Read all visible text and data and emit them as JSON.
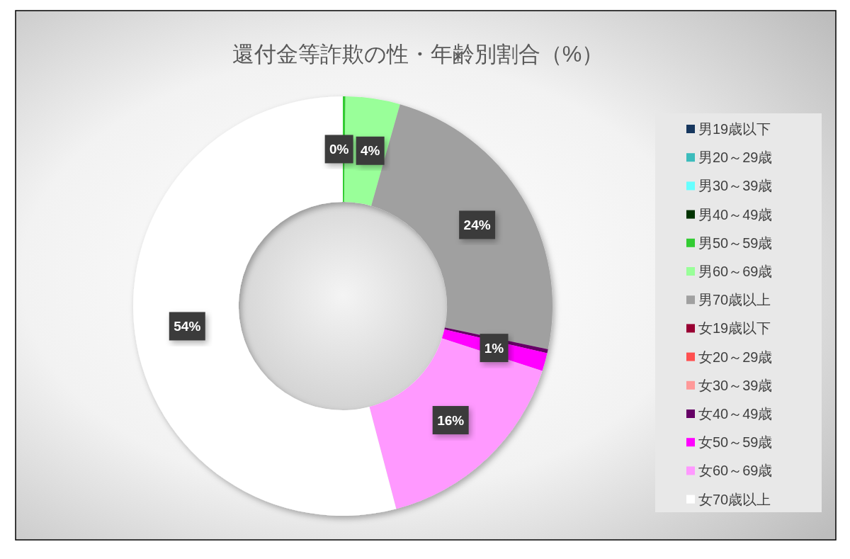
{
  "chart_data": {
    "type": "donut",
    "title": "還付金等詐欺の性・年齢別割合（%）",
    "categories": [
      "男19歳以下",
      "男20～29歳",
      "男30～39歳",
      "男40～49歳",
      "男50～59歳",
      "男60～69歳",
      "男70歳以上",
      "女19歳以下",
      "女20～29歳",
      "女30～39歳",
      "女40～49歳",
      "女50～59歳",
      "女60～69歳",
      "女70歳以上"
    ],
    "values": [
      0,
      0,
      0,
      0,
      0.2,
      4.2,
      23.9,
      0,
      0,
      0,
      0.3,
      1.4,
      15.9,
      54.1
    ],
    "colors": [
      "#17375e",
      "#3cbcbc",
      "#66ffff",
      "#003300",
      "#33cc33",
      "#99ff99",
      "#a0a0a0",
      "#990033",
      "#ff5050",
      "#ff9999",
      "#660066",
      "#ff00ff",
      "#ff99ff",
      "#ffffff"
    ],
    "value_labels": [
      null,
      null,
      null,
      null,
      "0%",
      "4%",
      "24%",
      null,
      null,
      null,
      null,
      "1%",
      "16%",
      "54%"
    ],
    "legend": "right"
  }
}
